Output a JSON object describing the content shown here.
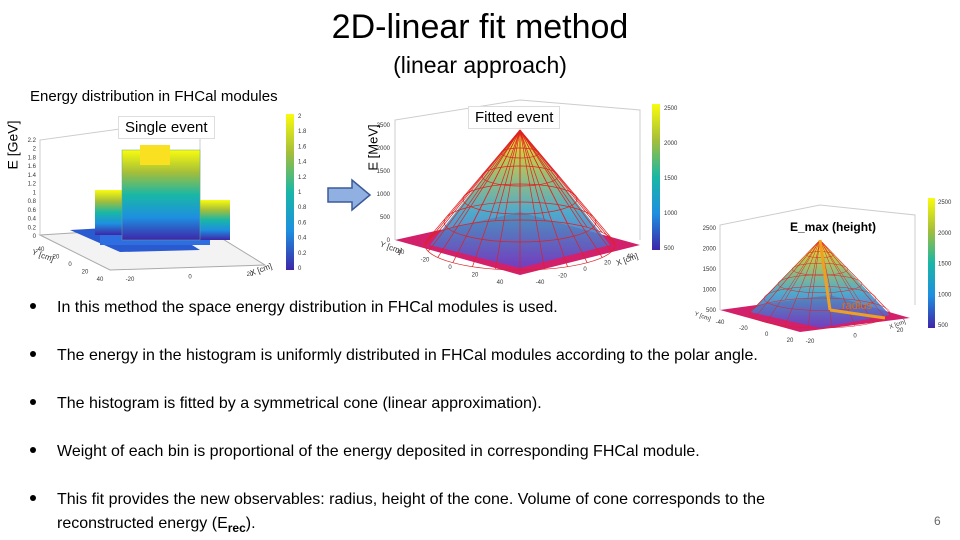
{
  "header": {
    "title": "2D-linear fit method",
    "subtitle": "(linear approach)"
  },
  "section_label": "Energy distribution in FHCal modules",
  "figures": [
    {
      "label": "Single event",
      "z_axis_label": "E [GeV]",
      "z_ticks": [
        0,
        0.2,
        0.4,
        0.6,
        0.8,
        1,
        1.2,
        1.4,
        1.6,
        1.8,
        2,
        2.2
      ],
      "colorbar_ticks": [
        0,
        0.2,
        0.4,
        0.6,
        0.8,
        1,
        1.2,
        1.4,
        1.6,
        1.8,
        2
      ],
      "y_axis_label": "Y [cm]",
      "x_axis_label": "X [cm]",
      "y_ticks": [
        -40,
        -20,
        0,
        20,
        40
      ],
      "x_ticks": [
        -20,
        0,
        20
      ]
    },
    {
      "label": "Fitted event",
      "z_axis_label": "E [MeV]",
      "z_ticks": [
        0,
        500,
        1000,
        1500,
        2000,
        2500
      ],
      "colorbar_ticks": [
        500,
        1000,
        1500,
        2000,
        2500
      ],
      "y_axis_label": "Y [cm]",
      "x_axis_label": "X [cm]",
      "y_ticks": [
        -40,
        -20,
        0,
        20,
        40
      ],
      "x_ticks": [
        -40,
        -20,
        0,
        20,
        40
      ]
    },
    {
      "label": "E_max (height)",
      "annotation": "radius",
      "z_ticks": [
        500,
        1000,
        1500,
        2000,
        2500
      ],
      "colorbar_ticks": [
        500,
        1000,
        1500,
        2000,
        2500
      ],
      "y_axis_label": "Y [cm]",
      "x_axis_label": "X [cm]",
      "y_ticks": [
        -40,
        -20,
        0,
        20
      ],
      "x_ticks": [
        -20,
        0,
        20
      ]
    }
  ],
  "bullets": [
    {
      "text": "In this method the space energy distribution in FHCal modules is used."
    },
    {
      "text": "The energy in the histogram is uniformly distributed in FHCal modules according to the polar angle."
    },
    {
      "text": "The histogram is fitted by a symmetrical cone (linear approximation)."
    },
    {
      "text": "Weight of each bin is proportional of the energy deposited in corresponding FHCal module."
    },
    {
      "text": "This fit provides the new observables:  radius, height of the cone. Volume of cone corresponds to the",
      "line2": "reconstructed energy (E",
      "sub": "rec",
      "tail": ")."
    }
  ],
  "page_number": "6"
}
